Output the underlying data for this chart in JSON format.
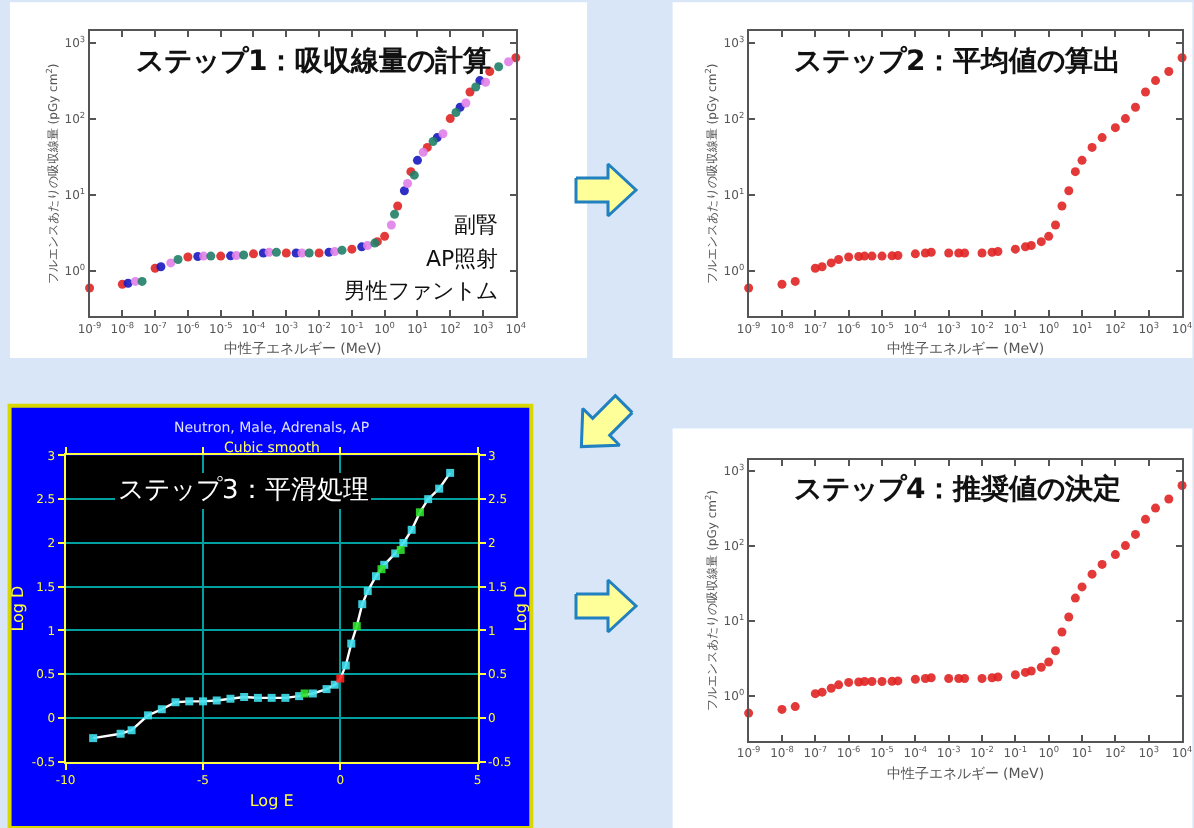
{
  "chart_data": [
    {
      "type": "scatter",
      "title": "ステップ1：吸収線量の計算",
      "xlabel": "中性子エネルギー (MeV)",
      "ylabel": "フルエンスあたりの吸収線量 (pGy cm$^{2}$)",
      "log": "xy",
      "marker": "circle",
      "xlim": [
        1e-09,
        10000
      ],
      "ylim": [
        0.25,
        1400
      ],
      "xticks": [
        {
          "value": 1e-09,
          "label": "10$^{-9}$"
        },
        {
          "value": 1e-08,
          "label": "10$^{-8}$"
        },
        {
          "value": 1e-07,
          "label": "10$^{-7}$"
        },
        {
          "value": 1e-06,
          "label": "10$^{-6}$"
        },
        {
          "value": 1e-05,
          "label": "10$^{-5}$"
        },
        {
          "value": 0.0001,
          "label": "10$^{-4}$"
        },
        {
          "value": 0.001,
          "label": "10$^{-3}$"
        },
        {
          "value": 0.01,
          "label": "10$^{-2}$"
        },
        {
          "value": 0.1,
          "label": "10$^{-1}$"
        },
        {
          "value": 1,
          "label": "10$^{0}$"
        },
        {
          "value": 10,
          "label": "10$^{1}$"
        },
        {
          "value": 100,
          "label": "10$^{2}$"
        },
        {
          "value": 1000,
          "label": "10$^{3}$"
        },
        {
          "value": 10000,
          "label": "10$^{4}$"
        }
      ],
      "yticks": [
        {
          "value": 1,
          "label": "10$^{0}$"
        },
        {
          "value": 10,
          "label": "10$^{1}$"
        },
        {
          "value": 100,
          "label": "10$^{2}$"
        },
        {
          "value": 1000,
          "label": "10$^{3}$"
        }
      ],
      "annotations": [
        "副腎",
        "AP照射",
        "男性ファントム"
      ],
      "series": [
        {
          "color": "#e02424",
          "x": [
            1e-09,
            1e-08,
            1e-07,
            1e-06,
            1e-05,
            0.0001,
            0.001,
            0.01,
            0.1,
            0.6,
            1,
            2.5,
            6.3,
            20,
            100,
            400,
            1600,
            10000
          ],
          "values": [
            0.59,
            0.66,
            1.07,
            1.51,
            1.55,
            1.66,
            1.7,
            1.7,
            1.91,
            2.4,
            2.82,
            7.08,
            20,
            41.7,
            100,
            224,
            417,
            631
          ]
        },
        {
          "color": "#1818c0",
          "x": [
            1.5e-08,
            1.5e-07,
            2e-06,
            2e-05,
            0.0002,
            0.002,
            0.02,
            0.2,
            4,
            10,
            40,
            200,
            800
          ],
          "values": [
            0.68,
            1.12,
            1.53,
            1.56,
            1.7,
            1.7,
            1.74,
            2.05,
            11.2,
            28.2,
            56.2,
            141,
            316
          ]
        },
        {
          "color": "#e080e8",
          "x": [
            2.5e-08,
            3e-07,
            3e-06,
            3e-05,
            0.0003,
            0.003,
            0.03,
            0.3,
            1.6,
            5,
            15,
            60,
            300,
            1200,
            6000
          ],
          "values": [
            0.72,
            1.26,
            1.55,
            1.58,
            1.74,
            1.7,
            1.78,
            2.14,
            3.98,
            14,
            36,
            63,
            160,
            300,
            560
          ]
        },
        {
          "color": "#208068",
          "x": [
            4e-08,
            5e-07,
            5e-06,
            5e-05,
            0.0005,
            0.005,
            0.05,
            0.5,
            2,
            8,
            30,
            150,
            600,
            3000
          ],
          "values": [
            0.72,
            1.4,
            1.55,
            1.6,
            1.74,
            1.7,
            1.85,
            2.3,
            5.5,
            18,
            50,
            120,
            260,
            480
          ]
        }
      ]
    },
    {
      "type": "scatter",
      "title": "ステップ2：平均値の算出",
      "xlabel": "中性子エネルギー (MeV)",
      "ylabel": "フルエンスあたりの吸収線量 (pGy cm$^{2}$)",
      "log": "xy",
      "marker": "circle",
      "xlim": [
        1e-09,
        10000
      ],
      "ylim": [
        0.25,
        1400
      ],
      "xticks": [
        {
          "value": 1e-09,
          "label": "10$^{-9}$"
        },
        {
          "value": 1e-08,
          "label": "10$^{-8}$"
        },
        {
          "value": 1e-07,
          "label": "10$^{-7}$"
        },
        {
          "value": 1e-06,
          "label": "10$^{-6}$"
        },
        {
          "value": 1e-05,
          "label": "10$^{-5}$"
        },
        {
          "value": 0.0001,
          "label": "10$^{-4}$"
        },
        {
          "value": 0.001,
          "label": "10$^{-3}$"
        },
        {
          "value": 0.01,
          "label": "10$^{-2}$"
        },
        {
          "value": 0.1,
          "label": "10$^{-1}$"
        },
        {
          "value": 1,
          "label": "10$^{0}$"
        },
        {
          "value": 10,
          "label": "10$^{1}$"
        },
        {
          "value": 100,
          "label": "10$^{2}$"
        },
        {
          "value": 1000,
          "label": "10$^{3}$"
        },
        {
          "value": 10000,
          "label": "10$^{4}$"
        }
      ],
      "yticks": [
        {
          "value": 1,
          "label": "10$^{0}$"
        },
        {
          "value": 10,
          "label": "10$^{1}$"
        },
        {
          "value": 100,
          "label": "10$^{2}$"
        },
        {
          "value": 1000,
          "label": "10$^{3}$"
        }
      ],
      "series": [
        {
          "color": "#e02424",
          "x": [
            1e-09,
            1e-08,
            2.5e-08,
            1e-07,
            1.6e-07,
            3e-07,
            5e-07,
            1e-06,
            2e-06,
            3e-06,
            5e-06,
            1e-05,
            2e-05,
            3e-05,
            0.0001,
            0.0002,
            0.0003,
            0.001,
            0.002,
            0.003,
            0.01,
            0.02,
            0.03,
            0.1,
            0.2,
            0.3,
            0.6,
            1,
            1.6,
            2.5,
            4,
            6.3,
            10,
            20,
            40,
            100,
            200,
            400,
            800,
            1600,
            4000,
            10000
          ],
          "values": [
            0.59,
            0.66,
            0.72,
            1.07,
            1.12,
            1.26,
            1.4,
            1.51,
            1.53,
            1.55,
            1.55,
            1.55,
            1.56,
            1.58,
            1.66,
            1.7,
            1.74,
            1.7,
            1.7,
            1.7,
            1.7,
            1.74,
            1.78,
            1.91,
            2.05,
            2.14,
            2.4,
            2.82,
            3.98,
            7.08,
            11.2,
            20,
            28.2,
            41.7,
            56.2,
            75.9,
            100,
            141,
            224,
            316,
            417,
            631
          ]
        }
      ]
    },
    {
      "type": "line",
      "title": "Neutron, Male, Adrenals, AP",
      "subtitle": "Cubic smooth",
      "xlabel": "Log E",
      "ylabel": "Log D",
      "y2label": "Log D",
      "grid": true,
      "xlim": [
        -10,
        5
      ],
      "ylim": [
        -0.5,
        3
      ],
      "y2lim": [
        -0.5,
        3
      ],
      "xticks": [
        -10,
        -5,
        0,
        5
      ],
      "yticks": [
        -0.5,
        0,
        0.5,
        1,
        1.5,
        2,
        2.5,
        3
      ],
      "y2ticks": [
        -0.5,
        0,
        0.5,
        1,
        1.5,
        2,
        2.5,
        3
      ],
      "annotations": [
        "ステップ3：平滑処理"
      ],
      "series": [
        {
          "type": "line",
          "marker": "none",
          "color": "#ffffff",
          "x": [
            -9,
            -8,
            -7.6,
            -7,
            -6.5,
            -6,
            -5.5,
            -5,
            -4.5,
            -4,
            -3.5,
            -3,
            -2.5,
            -2,
            -1.5,
            -1,
            -0.5,
            -0.2,
            0,
            0.2,
            0.4,
            0.6,
            0.8,
            1,
            1.3,
            1.6,
            2,
            2.3,
            2.6,
            2.9,
            3.2,
            3.6,
            4
          ],
          "values": [
            -0.23,
            -0.18,
            -0.14,
            0.03,
            0.1,
            0.18,
            0.19,
            0.19,
            0.2,
            0.22,
            0.24,
            0.23,
            0.23,
            0.23,
            0.25,
            0.28,
            0.33,
            0.38,
            0.45,
            0.6,
            0.85,
            1.05,
            1.3,
            1.45,
            1.62,
            1.75,
            1.88,
            2.0,
            2.15,
            2.35,
            2.5,
            2.62,
            2.8
          ]
        },
        {
          "type": "scatter",
          "marker": "square",
          "color": "#40e0f0",
          "x": [
            -9,
            -8,
            -7.6,
            -7,
            -6.5,
            -6,
            -5.5,
            -5,
            -4.5,
            -4,
            -3.5,
            -3,
            -2.5,
            -2,
            -1.5,
            -1,
            -0.5,
            -0.2,
            0.2,
            0.4,
            0.8,
            1,
            1.3,
            1.6,
            2,
            2.3,
            2.6,
            3.2,
            3.6,
            4
          ],
          "values": [
            -0.23,
            -0.18,
            -0.14,
            0.03,
            0.1,
            0.18,
            0.19,
            0.19,
            0.2,
            0.22,
            0.24,
            0.23,
            0.23,
            0.23,
            0.25,
            0.28,
            0.33,
            0.38,
            0.6,
            0.85,
            1.3,
            1.45,
            1.62,
            1.75,
            1.88,
            2.0,
            2.15,
            2.5,
            2.62,
            2.8
          ]
        },
        {
          "type": "scatter",
          "marker": "square",
          "color": "#30e030",
          "x": [
            -1.3,
            0.6,
            1.5,
            2.2,
            2.9
          ],
          "values": [
            0.28,
            1.05,
            1.7,
            1.92,
            2.35
          ]
        },
        {
          "type": "scatter",
          "marker": "square",
          "color": "#ff2020",
          "x": [
            0
          ],
          "values": [
            0.45
          ]
        }
      ]
    },
    {
      "type": "scatter",
      "title": "ステップ4：推奨値の決定",
      "xlabel": "中性子エネルギー (MeV)",
      "ylabel": "フルエンスあたりの吸収線量 (pGy cm$^{2}$)",
      "log": "xy",
      "marker": "circle",
      "xlim": [
        1e-09,
        10000
      ],
      "ylim": [
        0.25,
        1400
      ],
      "xticks": [
        {
          "value": 1e-09,
          "label": "10$^{-9}$"
        },
        {
          "value": 1e-08,
          "label": "10$^{-8}$"
        },
        {
          "value": 1e-07,
          "label": "10$^{-7}$"
        },
        {
          "value": 1e-06,
          "label": "10$^{-6}$"
        },
        {
          "value": 1e-05,
          "label": "10$^{-5}$"
        },
        {
          "value": 0.0001,
          "label": "10$^{-4}$"
        },
        {
          "value": 0.001,
          "label": "10$^{-3}$"
        },
        {
          "value": 0.01,
          "label": "10$^{-2}$"
        },
        {
          "value": 0.1,
          "label": "10$^{-1}$"
        },
        {
          "value": 1,
          "label": "10$^{0}$"
        },
        {
          "value": 10,
          "label": "10$^{1}$"
        },
        {
          "value": 100,
          "label": "10$^{2}$"
        },
        {
          "value": 1000,
          "label": "10$^{3}$"
        },
        {
          "value": 10000,
          "label": "10$^{4}$"
        }
      ],
      "yticks": [
        {
          "value": 1,
          "label": "10$^{0}$"
        },
        {
          "value": 10,
          "label": "10$^{1}$"
        },
        {
          "value": 100,
          "label": "10$^{2}$"
        },
        {
          "value": 1000,
          "label": "10$^{3}$"
        }
      ],
      "series": [
        {
          "color": "#e02424",
          "x": [
            1e-09,
            1e-08,
            2.5e-08,
            1e-07,
            1.6e-07,
            3e-07,
            5e-07,
            1e-06,
            2e-06,
            3e-06,
            5e-06,
            1e-05,
            2e-05,
            3e-05,
            0.0001,
            0.0002,
            0.0003,
            0.001,
            0.002,
            0.003,
            0.01,
            0.02,
            0.03,
            0.1,
            0.2,
            0.3,
            0.6,
            1,
            1.6,
            2.5,
            4,
            6.3,
            10,
            20,
            40,
            100,
            200,
            400,
            800,
            1600,
            4000,
            10000
          ],
          "values": [
            0.59,
            0.66,
            0.72,
            1.07,
            1.12,
            1.26,
            1.4,
            1.51,
            1.53,
            1.55,
            1.55,
            1.55,
            1.56,
            1.58,
            1.66,
            1.7,
            1.74,
            1.7,
            1.7,
            1.7,
            1.7,
            1.74,
            1.78,
            1.91,
            2.05,
            2.14,
            2.4,
            2.82,
            3.98,
            7.08,
            11.2,
            20,
            28.2,
            41.7,
            56.2,
            75.9,
            100,
            141,
            224,
            316,
            417,
            631
          ]
        }
      ]
    }
  ]
}
